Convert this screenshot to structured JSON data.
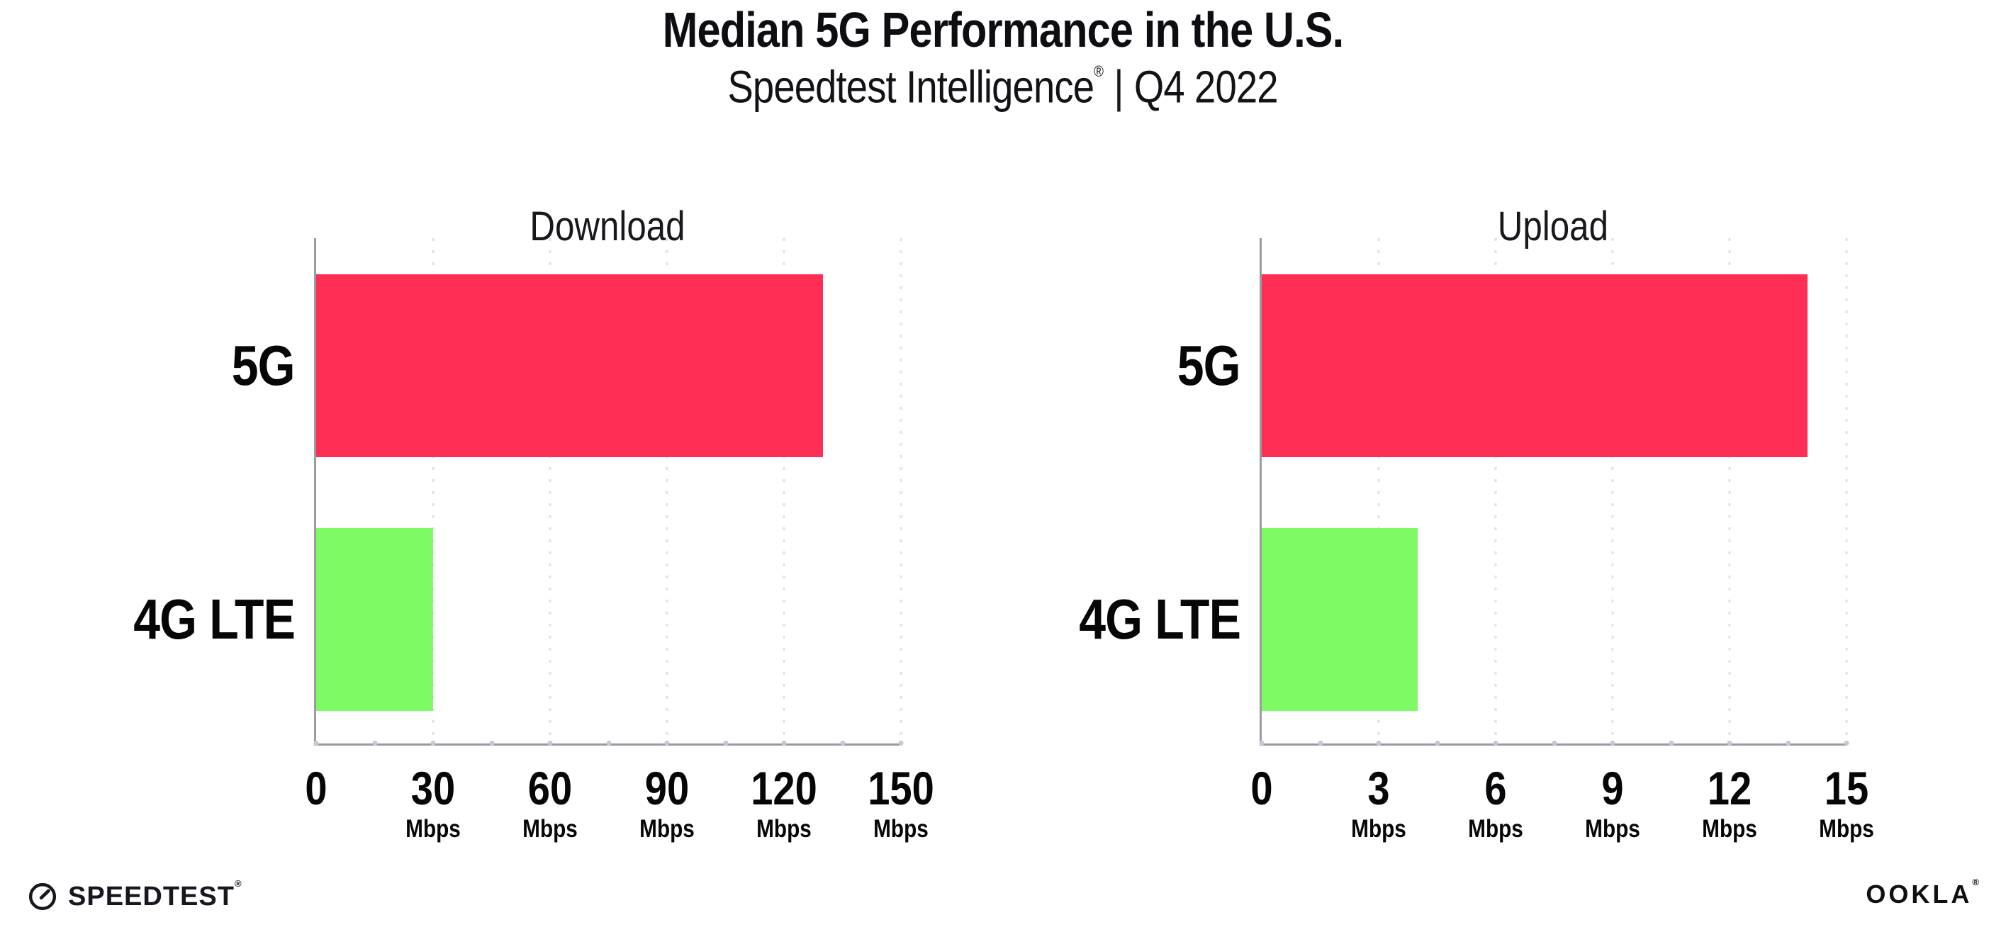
{
  "header": {
    "title": "Median 5G Performance in the U.S.",
    "subtitle_brand": "Speedtest Intelligence",
    "subtitle_mark": "®",
    "subtitle_divider": "|",
    "subtitle_period": "Q4 2022"
  },
  "colors": {
    "bar_5g": "#ff2e55",
    "bar_4g_lte": "#7dfa64",
    "axis": "#9a9aa0",
    "gridline": "#e0e1ea",
    "text": "#0d0d12"
  },
  "chart_data": [
    {
      "type": "bar",
      "orientation": "horizontal",
      "title": "Download",
      "categories": [
        "5G",
        "4G LTE"
      ],
      "values": [
        130,
        30
      ],
      "unit": "Mbps",
      "xlim": [
        0,
        150
      ],
      "ticks": [
        0,
        30,
        60,
        90,
        120,
        150
      ],
      "grid": "dotted-vertical",
      "legend": "none",
      "bar_colors": [
        "#ff2e55",
        "#7dfa64"
      ]
    },
    {
      "type": "bar",
      "orientation": "horizontal",
      "title": "Upload",
      "categories": [
        "5G",
        "4G LTE"
      ],
      "values": [
        14,
        4
      ],
      "unit": "Mbps",
      "xlim": [
        0,
        15
      ],
      "ticks": [
        0,
        3,
        6,
        9,
        12,
        15
      ],
      "grid": "dotted-vertical",
      "legend": "none",
      "bar_colors": [
        "#ff2e55",
        "#7dfa64"
      ]
    }
  ],
  "footer": {
    "speedtest_label": "SPEEDTEST",
    "speedtest_mark": "®",
    "ookla_label_left": "OO",
    "ookla_label_k": "K",
    "ookla_label_right": "LA",
    "ookla_mark": "®"
  }
}
